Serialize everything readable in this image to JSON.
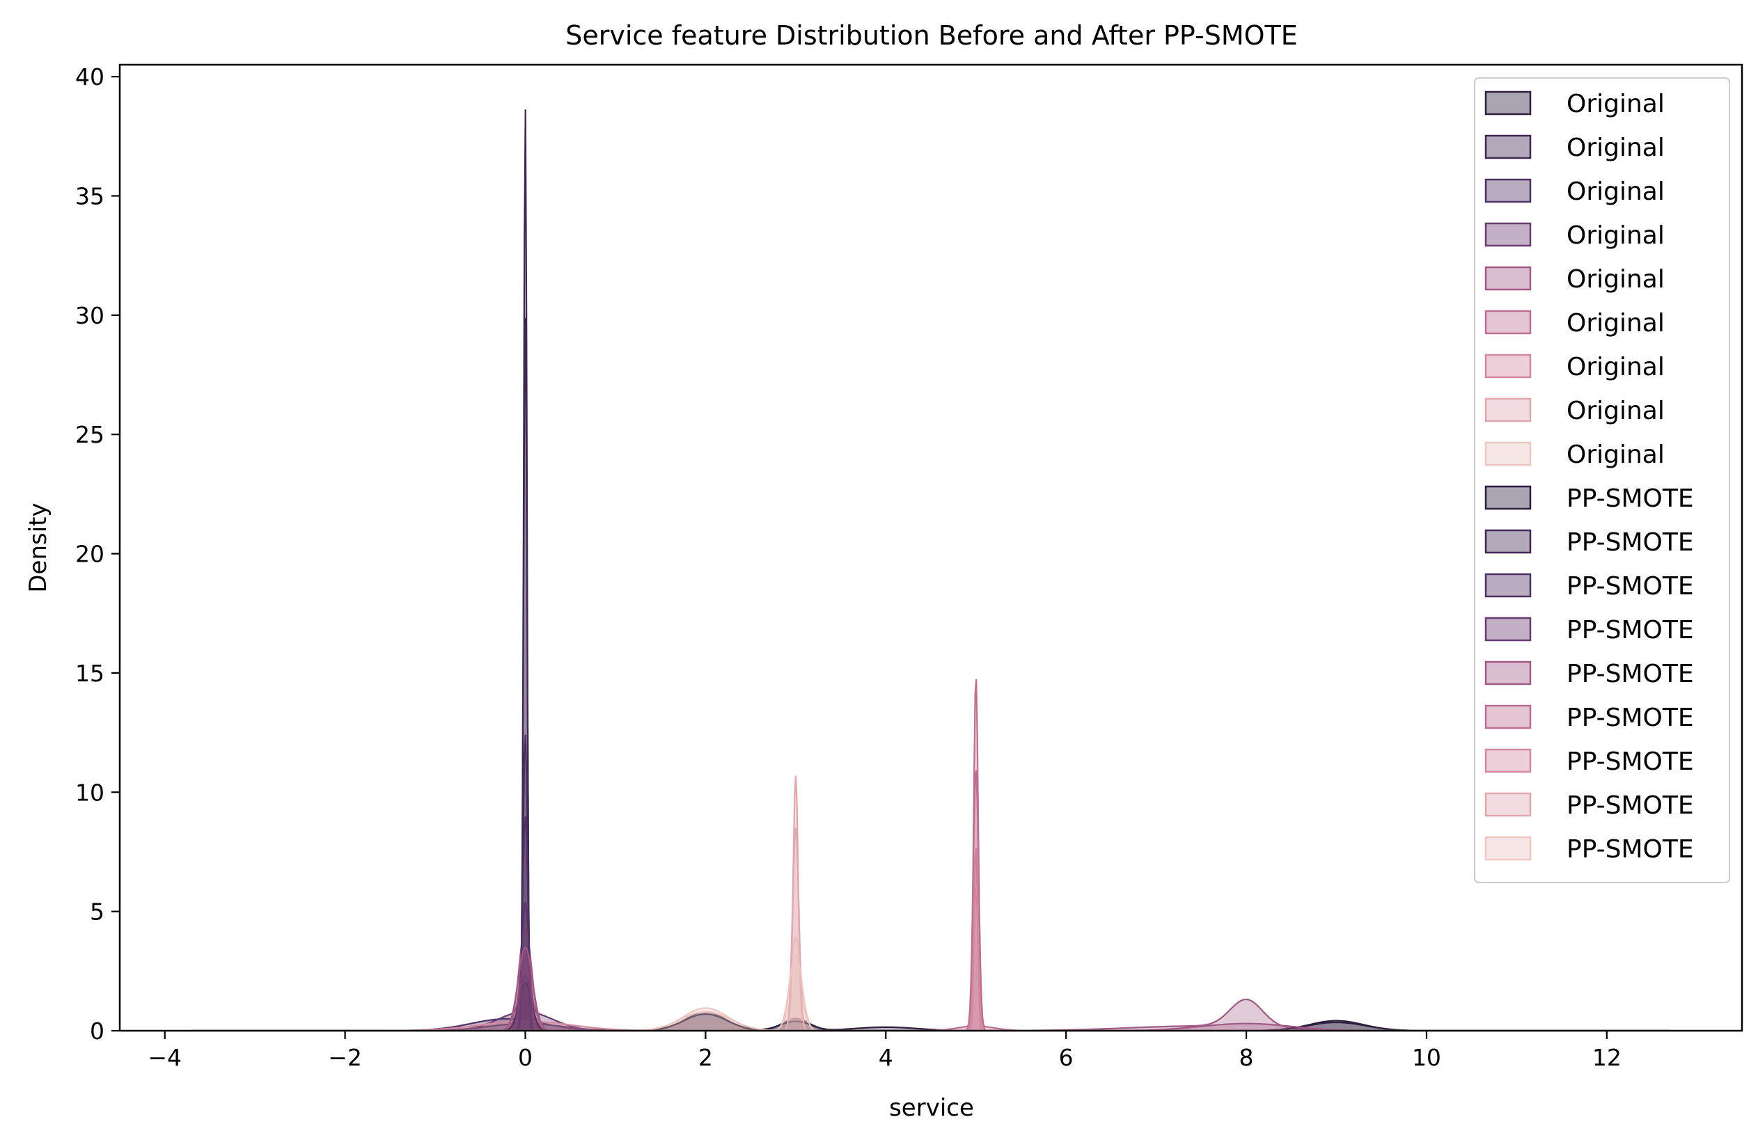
{
  "chart_data": {
    "type": "area",
    "title": "Service feature Distribution Before and After PP-SMOTE",
    "xlabel": "service",
    "ylabel": "Density",
    "xlim": [
      -4.5,
      13.5
    ],
    "ylim": [
      0,
      40.5
    ],
    "x_ticks": [
      -4,
      -2,
      0,
      2,
      4,
      6,
      8,
      10,
      12
    ],
    "x_tick_labels": [
      "−4",
      "−2",
      "0",
      "2",
      "4",
      "6",
      "8",
      "10",
      "12"
    ],
    "y_ticks": [
      0,
      5,
      10,
      15,
      20,
      25,
      30,
      35,
      40
    ],
    "y_tick_labels": [
      "0",
      "5",
      "10",
      "15",
      "20",
      "25",
      "30",
      "35",
      "40"
    ],
    "grid": false,
    "legend_position": "top-right",
    "series": [
      {
        "name": "Original",
        "color": "#2d1e3e",
        "peaks": [
          [
            0.0,
            2.3,
            0.06
          ],
          [
            2.0,
            0.8,
            0.22
          ],
          [
            3.0,
            0.5,
            0.15
          ],
          [
            4.0,
            0.15,
            0.35
          ],
          [
            9.0,
            0.42,
            0.3
          ]
        ]
      },
      {
        "name": "Original",
        "color": "#3e2852",
        "peaks": [
          [
            0.0,
            38.5,
            0.018
          ],
          [
            0.0,
            0.3,
            0.4
          ]
        ]
      },
      {
        "name": "Original",
        "color": "#4f3064",
        "peaks": [
          [
            0.0,
            12.0,
            0.025
          ],
          [
            -0.2,
            0.5,
            0.4
          ]
        ]
      },
      {
        "name": "Original",
        "color": "#6b3a73",
        "peaks": [
          [
            0.0,
            4.6,
            0.04
          ],
          [
            0.0,
            0.8,
            0.3
          ]
        ]
      },
      {
        "name": "Original",
        "color": "#a15a86",
        "peaks": [
          [
            0.0,
            4.3,
            0.07
          ],
          [
            8.0,
            1.15,
            0.18
          ],
          [
            7.5,
            0.2,
            0.8
          ]
        ]
      },
      {
        "name": "Original",
        "color": "#bd6f93",
        "peaks": [
          [
            5.0,
            14.7,
            0.025
          ],
          [
            5.0,
            0.2,
            0.2
          ]
        ]
      },
      {
        "name": "Original",
        "color": "#d389a0",
        "peaks": [
          [
            5.0,
            7.8,
            0.02
          ],
          [
            0.0,
            0.4,
            0.5
          ]
        ]
      },
      {
        "name": "Original",
        "color": "#e0a7ae",
        "peaks": [
          [
            3.0,
            10.7,
            0.028
          ],
          [
            2.0,
            0.4,
            0.3
          ]
        ]
      },
      {
        "name": "Original",
        "color": "#ecc6c2",
        "peaks": [
          [
            3.0,
            3.9,
            0.06
          ],
          [
            2.0,
            0.95,
            0.25
          ]
        ]
      },
      {
        "name": "PP-SMOTE",
        "color": "#2d1e3e",
        "peaks": [
          [
            0.0,
            2.0,
            0.07
          ],
          [
            2.0,
            0.7,
            0.24
          ],
          [
            3.0,
            0.4,
            0.17
          ],
          [
            9.0,
            0.35,
            0.32
          ]
        ]
      },
      {
        "name": "PP-SMOTE",
        "color": "#3e2852",
        "peaks": [
          [
            0.0,
            30.0,
            0.02
          ]
        ]
      },
      {
        "name": "PP-SMOTE",
        "color": "#4f3064",
        "peaks": [
          [
            0.0,
            9.0,
            0.03
          ]
        ]
      },
      {
        "name": "PP-SMOTE",
        "color": "#6b3a73",
        "peaks": [
          [
            0.0,
            3.5,
            0.05
          ]
        ]
      },
      {
        "name": "PP-SMOTE",
        "color": "#a15a86",
        "peaks": [
          [
            0.0,
            3.5,
            0.08
          ],
          [
            8.0,
            0.3,
            0.5
          ]
        ]
      },
      {
        "name": "PP-SMOTE",
        "color": "#bd6f93",
        "peaks": [
          [
            5.0,
            11.0,
            0.03
          ]
        ]
      },
      {
        "name": "PP-SMOTE",
        "color": "#d389a0",
        "peaks": [
          [
            5.0,
            6.0,
            0.025
          ]
        ]
      },
      {
        "name": "PP-SMOTE",
        "color": "#e0a7ae",
        "peaks": [
          [
            3.0,
            8.5,
            0.035
          ]
        ]
      },
      {
        "name": "PP-SMOTE",
        "color": "#ecc6c2",
        "peaks": [
          [
            3.0,
            3.2,
            0.07
          ],
          [
            2.0,
            0.8,
            0.27
          ]
        ]
      }
    ]
  }
}
